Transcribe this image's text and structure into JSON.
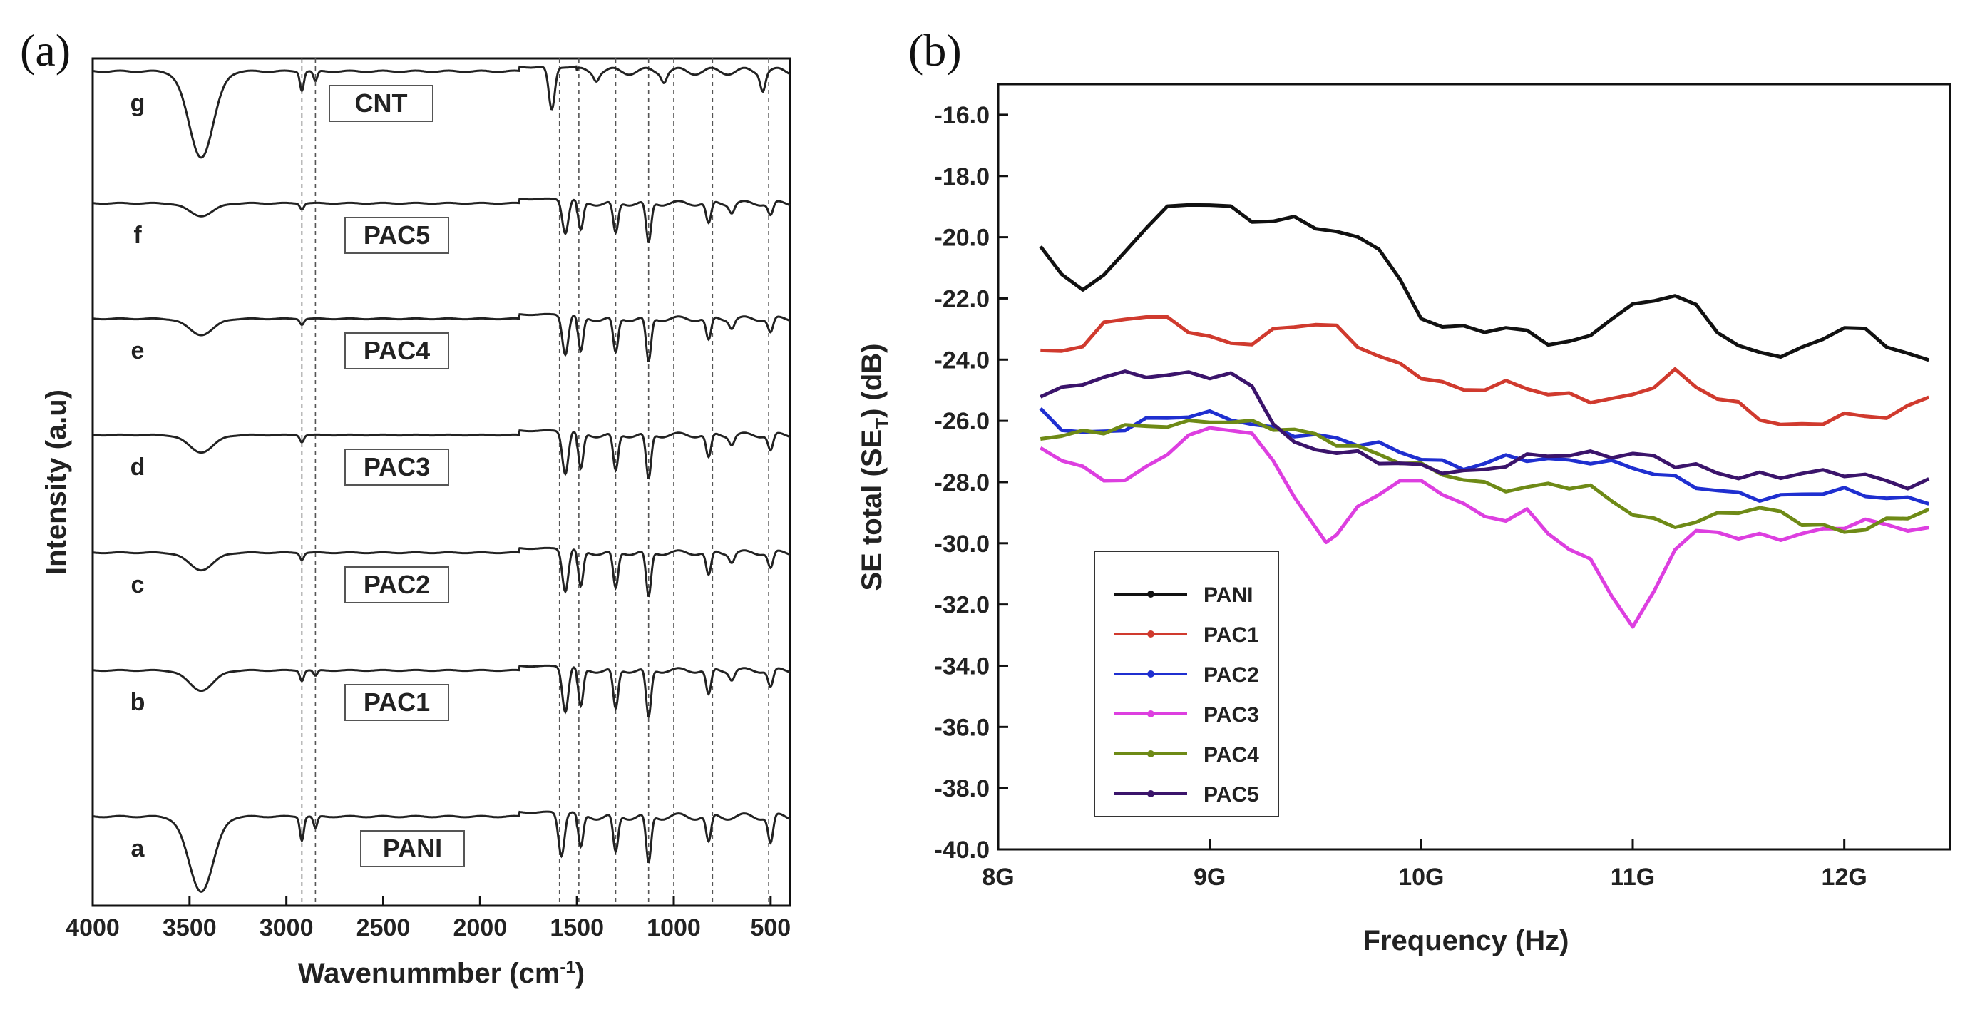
{
  "chart_data": [
    {
      "type": "line",
      "panel_label": "(a)",
      "title": "",
      "xlabel": "Wavenummber (cm",
      "xlabel_sup": "-1",
      "xlabel_end": ")",
      "ylabel": "Intensity (a.u)",
      "xlim": [
        4000,
        400
      ],
      "xticks": [
        4000,
        3500,
        3000,
        2500,
        2000,
        1500,
        1000,
        500
      ],
      "reference_lines": [
        2920,
        2850,
        1590,
        1490,
        1300,
        1130,
        1000,
        800,
        510
      ],
      "series": [
        {
          "letter": "g",
          "name": "CNT",
          "peaks": [
            [
              3440,
              1.0
            ],
            [
              2920,
              0.22
            ],
            [
              2850,
              0.12
            ],
            [
              1630,
              0.5
            ],
            [
              1400,
              0.08
            ],
            [
              1050,
              0.1
            ],
            [
              540,
              0.2
            ]
          ]
        },
        {
          "letter": "f",
          "name": "PAC5",
          "peaks": [
            [
              3440,
              0.22
            ],
            [
              2920,
              0.1
            ],
            [
              1560,
              0.6
            ],
            [
              1480,
              0.5
            ],
            [
              1300,
              0.55
            ],
            [
              1130,
              0.72
            ],
            [
              820,
              0.38
            ],
            [
              700,
              0.15
            ],
            [
              500,
              0.22
            ]
          ]
        },
        {
          "letter": "e",
          "name": "PAC4",
          "peaks": [
            [
              3440,
              0.28
            ],
            [
              2920,
              0.1
            ],
            [
              1560,
              0.7
            ],
            [
              1480,
              0.6
            ],
            [
              1300,
              0.62
            ],
            [
              1130,
              0.78
            ],
            [
              820,
              0.4
            ],
            [
              700,
              0.15
            ],
            [
              500,
              0.25
            ]
          ]
        },
        {
          "letter": "d",
          "name": "PAC3",
          "peaks": [
            [
              3440,
              0.3
            ],
            [
              2920,
              0.12
            ],
            [
              1560,
              0.75
            ],
            [
              1480,
              0.62
            ],
            [
              1300,
              0.65
            ],
            [
              1130,
              0.8
            ],
            [
              820,
              0.42
            ],
            [
              700,
              0.15
            ],
            [
              500,
              0.28
            ]
          ]
        },
        {
          "letter": "c",
          "name": "PAC2",
          "peaks": [
            [
              3440,
              0.3
            ],
            [
              2920,
              0.12
            ],
            [
              1560,
              0.75
            ],
            [
              1480,
              0.62
            ],
            [
              1300,
              0.65
            ],
            [
              1130,
              0.8
            ],
            [
              820,
              0.42
            ],
            [
              700,
              0.15
            ],
            [
              500,
              0.28
            ]
          ]
        },
        {
          "letter": "b",
          "name": "PAC1",
          "peaks": [
            [
              3440,
              0.35
            ],
            [
              2920,
              0.18
            ],
            [
              2850,
              0.1
            ],
            [
              1560,
              0.8
            ],
            [
              1480,
              0.66
            ],
            [
              1300,
              0.7
            ],
            [
              1130,
              0.85
            ],
            [
              820,
              0.45
            ],
            [
              700,
              0.15
            ],
            [
              500,
              0.3
            ]
          ]
        },
        {
          "letter": "a",
          "name": "PANI",
          "peaks": [
            [
              3440,
              0.95
            ],
            [
              2920,
              0.3
            ],
            [
              2850,
              0.15
            ],
            [
              1580,
              0.55
            ],
            [
              1480,
              0.42
            ],
            [
              1300,
              0.48
            ],
            [
              1130,
              0.62
            ],
            [
              820,
              0.35
            ],
            [
              500,
              0.35
            ]
          ]
        }
      ]
    },
    {
      "type": "line",
      "panel_label": "(b)",
      "title": "",
      "xlabel": "Frequency (Hz)",
      "ylabel": "SE total (SE",
      "ylabel_sub": "T",
      "ylabel_end": ") (dB)",
      "xlim": [
        8.0,
        12.5
      ],
      "ylim": [
        -40.0,
        -15.0
      ],
      "xticks": [
        8,
        9,
        10,
        11,
        12
      ],
      "xtick_labels": [
        "8G",
        "9G",
        "10G",
        "11G",
        "12G"
      ],
      "yticks": [
        -40.0,
        -38.0,
        -36.0,
        -34.0,
        -32.0,
        -30.0,
        -28.0,
        -26.0,
        -24.0,
        -22.0,
        -20.0,
        -18.0,
        -16.0
      ],
      "ytick_labels": [
        "-40.0",
        "-38.0",
        "-36.0",
        "-34.0",
        "-32.0",
        "-30.0",
        "-28.0",
        "-26.0",
        "-24.0",
        "-22.0",
        "-20.0",
        "-18.0",
        "-16.0"
      ],
      "series": [
        {
          "name": "PANI",
          "color": "#111111",
          "marker": "square",
          "x": [
            8.2,
            8.3,
            8.4,
            8.5,
            8.6,
            8.7,
            8.8,
            8.9,
            9.0,
            9.1,
            9.2,
            9.3,
            9.4,
            9.5,
            9.6,
            9.7,
            9.8,
            9.9,
            10.0,
            10.1,
            10.2,
            10.3,
            10.4,
            10.5,
            10.6,
            10.7,
            10.8,
            10.9,
            11.0,
            11.1,
            11.2,
            11.3,
            11.4,
            11.5,
            11.6,
            11.7,
            11.8,
            11.9,
            12.0,
            12.1,
            12.2,
            12.3,
            12.4
          ],
          "y": [
            -20.3,
            -21.3,
            -21.6,
            -21.3,
            -20.5,
            -19.6,
            -19.1,
            -18.9,
            -18.9,
            -19.1,
            -19.4,
            -19.5,
            -19.4,
            -19.6,
            -19.9,
            -20.0,
            -20.3,
            -21.5,
            -22.6,
            -22.9,
            -23.0,
            -23.0,
            -23.0,
            -23.1,
            -23.4,
            -23.5,
            -23.2,
            -22.6,
            -22.3,
            -22.0,
            -21.9,
            -22.3,
            -23.0,
            -23.6,
            -23.8,
            -23.8,
            -23.7,
            -23.3,
            -22.9,
            -23.1,
            -23.5,
            -23.8,
            -24.1
          ]
        },
        {
          "name": "PAC1",
          "color": "#d03a2e",
          "marker": "circle",
          "x": [
            8.2,
            8.3,
            8.4,
            8.5,
            8.6,
            8.7,
            8.8,
            8.9,
            9.0,
            9.1,
            9.2,
            9.3,
            9.4,
            9.5,
            9.6,
            9.7,
            9.8,
            9.9,
            10.0,
            10.1,
            10.2,
            10.3,
            10.4,
            10.5,
            10.6,
            10.7,
            10.8,
            10.9,
            11.0,
            11.1,
            11.2,
            11.3,
            11.4,
            11.5,
            11.6,
            11.7,
            11.8,
            11.9,
            12.0,
            12.1,
            12.2,
            12.3,
            12.4
          ],
          "y": [
            -23.8,
            -23.7,
            -23.5,
            -22.9,
            -22.6,
            -22.6,
            -22.7,
            -23.0,
            -23.3,
            -23.5,
            -23.4,
            -23.1,
            -22.9,
            -22.8,
            -23.0,
            -23.5,
            -23.9,
            -24.2,
            -24.5,
            -24.8,
            -25.0,
            -24.9,
            -24.8,
            -24.9,
            -25.1,
            -25.2,
            -25.3,
            -25.3,
            -25.2,
            -24.8,
            -24.4,
            -24.9,
            -25.2,
            -25.5,
            -25.9,
            -26.1,
            -26.2,
            -26.0,
            -25.8,
            -25.9,
            -25.8,
            -25.6,
            -25.2
          ]
        },
        {
          "name": "PAC2",
          "color": "#1f2fd0",
          "marker": "triangle",
          "x": [
            8.2,
            8.3,
            8.4,
            8.5,
            8.6,
            8.7,
            8.8,
            8.9,
            9.0,
            9.1,
            9.2,
            9.3,
            9.4,
            9.5,
            9.6,
            9.7,
            9.8,
            9.9,
            10.0,
            10.1,
            10.2,
            10.3,
            10.4,
            10.5,
            10.6,
            10.7,
            10.8,
            10.9,
            11.0,
            11.1,
            11.2,
            11.3,
            11.4,
            11.5,
            11.6,
            11.7,
            11.8,
            11.9,
            12.0,
            12.1,
            12.2,
            12.3,
            12.4
          ],
          "y": [
            -25.7,
            -26.2,
            -26.4,
            -26.4,
            -26.2,
            -26.0,
            -25.9,
            -25.8,
            -25.8,
            -25.9,
            -26.1,
            -26.3,
            -26.4,
            -26.5,
            -26.6,
            -26.7,
            -26.8,
            -27.0,
            -27.2,
            -27.4,
            -27.5,
            -27.4,
            -27.2,
            -27.2,
            -27.3,
            -27.3,
            -27.3,
            -27.4,
            -27.5,
            -27.7,
            -27.9,
            -28.1,
            -28.3,
            -28.4,
            -28.5,
            -28.5,
            -28.4,
            -28.3,
            -28.3,
            -28.4,
            -28.5,
            -28.6,
            -28.6
          ]
        },
        {
          "name": "PAC3",
          "color": "#dd3fe0",
          "marker": "triangle-down",
          "x": [
            8.2,
            8.3,
            8.4,
            8.5,
            8.6,
            8.7,
            8.8,
            8.9,
            9.0,
            9.1,
            9.2,
            9.3,
            9.4,
            9.5,
            9.55,
            9.6,
            9.7,
            9.8,
            9.9,
            10.0,
            10.1,
            10.2,
            10.3,
            10.4,
            10.5,
            10.6,
            10.7,
            10.8,
            10.9,
            11.0,
            11.1,
            11.2,
            11.3,
            11.4,
            11.5,
            11.6,
            11.7,
            11.8,
            11.9,
            12.0,
            12.1,
            12.2,
            12.3,
            12.4
          ],
          "y": [
            -26.9,
            -27.2,
            -27.6,
            -27.9,
            -27.9,
            -27.6,
            -27.0,
            -26.5,
            -26.3,
            -26.2,
            -26.5,
            -27.3,
            -28.4,
            -29.6,
            -29.9,
            -29.7,
            -28.9,
            -28.3,
            -28.0,
            -28.0,
            -28.3,
            -28.8,
            -29.1,
            -29.2,
            -29.0,
            -29.6,
            -30.2,
            -30.6,
            -31.6,
            -32.8,
            -31.6,
            -30.1,
            -29.7,
            -29.6,
            -29.8,
            -29.8,
            -29.8,
            -29.7,
            -29.6,
            -29.4,
            -29.3,
            -29.4,
            -29.5,
            -29.6
          ]
        },
        {
          "name": "PAC4",
          "color": "#6e8a16",
          "marker": "diamond",
          "x": [
            8.2,
            8.3,
            8.4,
            8.5,
            8.6,
            8.7,
            8.8,
            8.9,
            9.0,
            9.1,
            9.2,
            9.3,
            9.4,
            9.5,
            9.6,
            9.7,
            9.8,
            9.9,
            10.0,
            10.1,
            10.2,
            10.3,
            10.4,
            10.5,
            10.6,
            10.7,
            10.8,
            10.9,
            11.0,
            11.1,
            11.2,
            11.3,
            11.4,
            11.5,
            11.6,
            11.7,
            11.8,
            11.9,
            12.0,
            12.1,
            12.2,
            12.3,
            12.4
          ],
          "y": [
            -26.5,
            -26.5,
            -26.4,
            -26.3,
            -26.2,
            -26.2,
            -26.1,
            -26.1,
            -26.0,
            -26.0,
            -26.1,
            -26.2,
            -26.3,
            -26.5,
            -26.7,
            -26.9,
            -27.1,
            -27.3,
            -27.5,
            -27.7,
            -27.9,
            -28.1,
            -28.2,
            -28.2,
            -28.1,
            -28.1,
            -28.2,
            -28.6,
            -29.0,
            -29.3,
            -29.4,
            -29.3,
            -29.1,
            -28.9,
            -28.9,
            -29.0,
            -29.3,
            -29.5,
            -29.6,
            -29.5,
            -29.3,
            -29.1,
            -28.9
          ]
        },
        {
          "name": "PAC5",
          "color": "#3b146b",
          "marker": "star",
          "x": [
            8.2,
            8.3,
            8.4,
            8.5,
            8.6,
            8.7,
            8.8,
            8.9,
            9.0,
            9.1,
            9.2,
            9.3,
            9.4,
            9.5,
            9.6,
            9.7,
            9.8,
            9.9,
            10.0,
            10.1,
            10.2,
            10.3,
            10.4,
            10.5,
            10.6,
            10.7,
            10.8,
            10.9,
            11.0,
            11.1,
            11.2,
            11.3,
            11.4,
            11.5,
            11.6,
            11.7,
            11.8,
            11.9,
            12.0,
            12.1,
            12.2,
            12.3,
            12.4
          ],
          "y": [
            -25.1,
            -25.0,
            -24.8,
            -24.5,
            -24.5,
            -24.5,
            -24.5,
            -24.5,
            -24.5,
            -24.5,
            -24.9,
            -26.0,
            -26.8,
            -26.9,
            -27.0,
            -27.1,
            -27.3,
            -27.4,
            -27.5,
            -27.6,
            -27.7,
            -27.6,
            -27.4,
            -27.2,
            -27.1,
            -27.1,
            -27.1,
            -27.1,
            -27.1,
            -27.2,
            -27.4,
            -27.5,
            -27.7,
            -27.8,
            -27.8,
            -27.8,
            -27.7,
            -27.7,
            -27.7,
            -27.8,
            -28.0,
            -28.1,
            -28.0
          ]
        }
      ]
    }
  ]
}
